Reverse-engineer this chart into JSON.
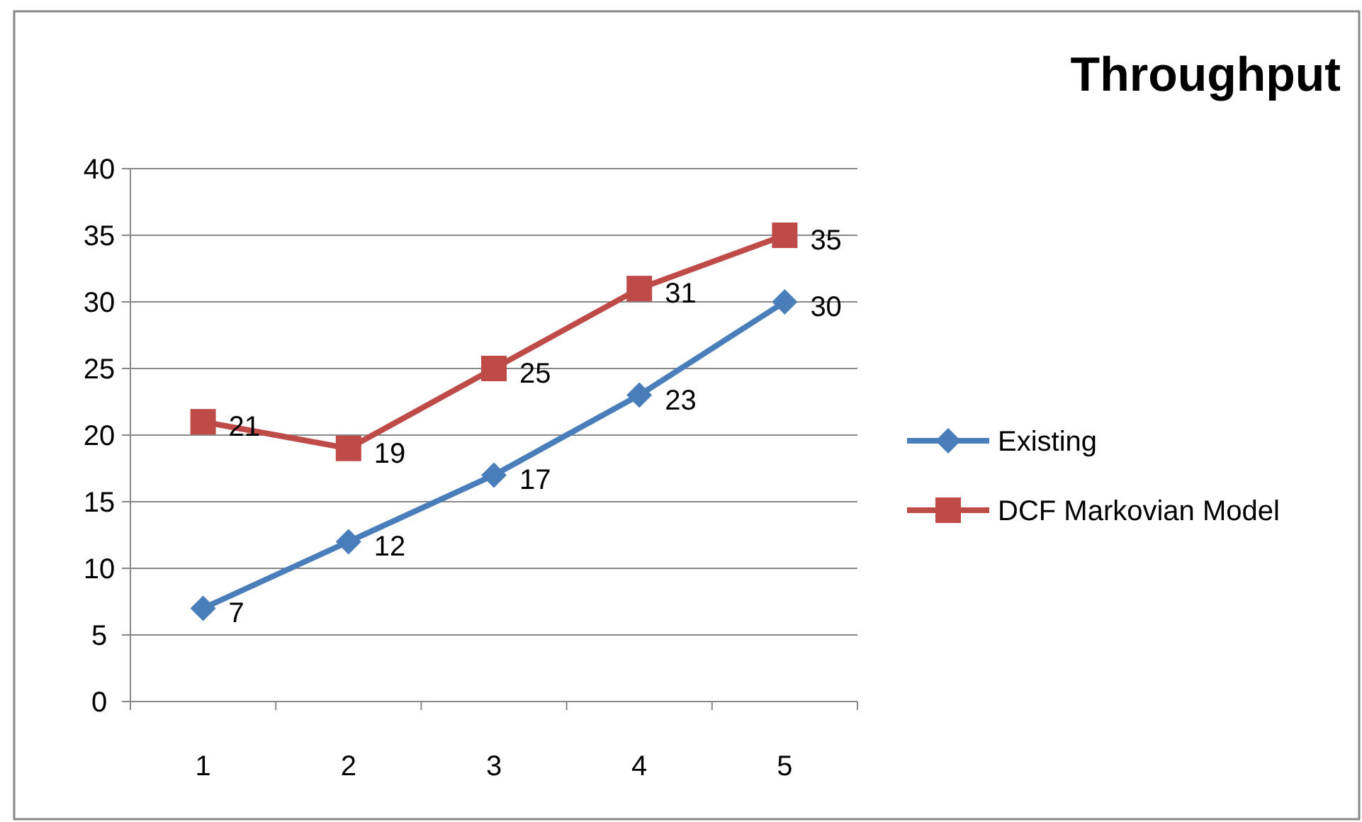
{
  "chart_data": {
    "type": "line",
    "title": "Throughput",
    "categories": [
      "1",
      "2",
      "3",
      "4",
      "5"
    ],
    "series": [
      {
        "name": "Existing",
        "color": "#4a7ebb",
        "marker": "diamond",
        "values": [
          7,
          12,
          17,
          23,
          30
        ]
      },
      {
        "name": "DCF Markovian Model",
        "color": "#be4b48",
        "marker": "square",
        "values": [
          21,
          19,
          25,
          31,
          35
        ]
      }
    ],
    "ylim": [
      0,
      40
    ],
    "yticks": [
      0,
      5,
      10,
      15,
      20,
      25,
      30,
      35,
      40
    ],
    "grid": "y",
    "legend": "right",
    "data_labels": true
  }
}
